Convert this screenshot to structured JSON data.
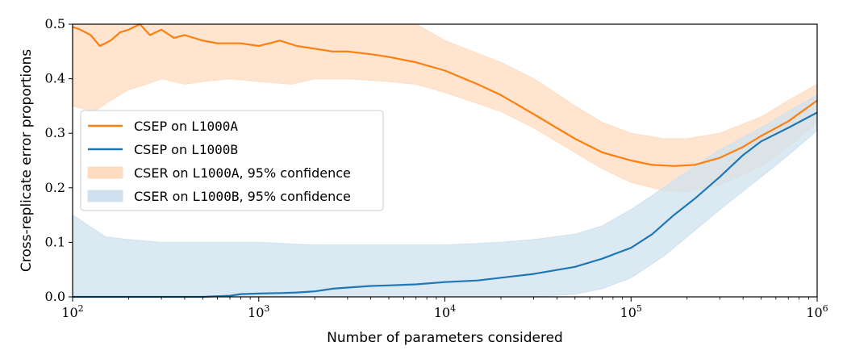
{
  "chart_data": {
    "type": "line",
    "xlabel": "Number of parameters considered",
    "ylabel": "Cross-replicate error proportions",
    "xscale": "log",
    "xlim": [
      100,
      1000000
    ],
    "ylim": [
      0,
      0.5
    ],
    "grid": false,
    "legend_position": "center-left",
    "x_ticks": [
      {
        "value": 100,
        "base": "10",
        "exp": "2"
      },
      {
        "value": 1000,
        "base": "10",
        "exp": "3"
      },
      {
        "value": 10000,
        "base": "10",
        "exp": "4"
      },
      {
        "value": 100000,
        "base": "10",
        "exp": "5"
      },
      {
        "value": 1000000,
        "base": "10",
        "exp": "6"
      }
    ],
    "y_ticks": [
      {
        "value": 0.0,
        "label": "0.0"
      },
      {
        "value": 0.1,
        "label": "0.1"
      },
      {
        "value": 0.2,
        "label": "0.2"
      },
      {
        "value": 0.3,
        "label": "0.3"
      },
      {
        "value": 0.4,
        "label": "0.4"
      },
      {
        "value": 0.5,
        "label": "0.5"
      }
    ],
    "series": [
      {
        "name": "CSEP on L1000A",
        "legend_prefix": "CSEP on ",
        "legend_mono": "L1000A",
        "legend_suffix": "",
        "kind": "line",
        "color": "#ff7f0e",
        "x": [
          100,
          110,
          125,
          140,
          160,
          180,
          200,
          230,
          260,
          300,
          350,
          400,
          500,
          600,
          800,
          1000,
          1300,
          1600,
          2000,
          2500,
          3000,
          4000,
          5000,
          7000,
          10000,
          15000,
          20000,
          30000,
          50000,
          70000,
          100000,
          130000,
          170000,
          220000,
          300000,
          400000,
          500000,
          700000,
          1000000
        ],
        "y": [
          0.495,
          0.49,
          0.48,
          0.46,
          0.47,
          0.485,
          0.49,
          0.5,
          0.48,
          0.49,
          0.475,
          0.48,
          0.47,
          0.465,
          0.465,
          0.46,
          0.47,
          0.46,
          0.455,
          0.45,
          0.45,
          0.445,
          0.44,
          0.43,
          0.415,
          0.39,
          0.37,
          0.335,
          0.29,
          0.265,
          0.25,
          0.242,
          0.24,
          0.242,
          0.255,
          0.275,
          0.295,
          0.322,
          0.36
        ]
      },
      {
        "name": "CSEP on L1000B",
        "legend_prefix": "CSEP on ",
        "legend_mono": "L1000B",
        "legend_suffix": "",
        "kind": "line",
        "color": "#1f77b4",
        "x": [
          100,
          500,
          700,
          800,
          1000,
          1300,
          1600,
          2000,
          2500,
          3000,
          4000,
          5000,
          7000,
          10000,
          15000,
          20000,
          30000,
          50000,
          70000,
          100000,
          130000,
          170000,
          220000,
          300000,
          400000,
          500000,
          700000,
          1000000
        ],
        "y": [
          0.0,
          0.0,
          0.002,
          0.005,
          0.006,
          0.007,
          0.008,
          0.01,
          0.015,
          0.017,
          0.02,
          0.021,
          0.023,
          0.027,
          0.03,
          0.035,
          0.042,
          0.055,
          0.07,
          0.09,
          0.115,
          0.15,
          0.18,
          0.22,
          0.26,
          0.285,
          0.31,
          0.338
        ]
      },
      {
        "name": "CSER on L1000A, 95% confidence",
        "legend_prefix": "CSER on ",
        "legend_mono": "L1000A",
        "legend_suffix": ", 95% confidence",
        "kind": "band",
        "color": "#ffdcc0",
        "x": [
          100,
          130,
          160,
          200,
          250,
          300,
          400,
          500,
          700,
          1000,
          1500,
          2000,
          3000,
          5000,
          7000,
          10000,
          20000,
          30000,
          50000,
          70000,
          100000,
          150000,
          200000,
          300000,
          500000,
          700000,
          1000000
        ],
        "low": [
          0.35,
          0.34,
          0.36,
          0.38,
          0.39,
          0.4,
          0.39,
          0.395,
          0.4,
          0.395,
          0.39,
          0.4,
          0.4,
          0.395,
          0.39,
          0.375,
          0.34,
          0.31,
          0.265,
          0.235,
          0.21,
          0.195,
          0.193,
          0.205,
          0.24,
          0.275,
          0.32
        ],
        "high": [
          0.5,
          0.5,
          0.5,
          0.5,
          0.5,
          0.5,
          0.5,
          0.5,
          0.5,
          0.5,
          0.5,
          0.5,
          0.5,
          0.5,
          0.5,
          0.47,
          0.43,
          0.4,
          0.35,
          0.32,
          0.3,
          0.29,
          0.29,
          0.3,
          0.33,
          0.36,
          0.39
        ]
      },
      {
        "name": "CSER on L1000B, 95% confidence",
        "legend_prefix": "CSER on ",
        "legend_mono": "L1000B",
        "legend_suffix": ", 95% confidence",
        "kind": "band",
        "color": "#cfe1ef",
        "x": [
          100,
          150,
          200,
          300,
          500,
          700,
          1000,
          2000,
          3000,
          5000,
          10000,
          20000,
          30000,
          50000,
          70000,
          100000,
          150000,
          200000,
          300000,
          500000,
          700000,
          1000000
        ],
        "low": [
          0,
          0,
          0,
          0,
          0,
          0,
          0,
          0,
          0,
          0,
          0,
          0,
          0,
          0.005,
          0.015,
          0.035,
          0.075,
          0.11,
          0.16,
          0.22,
          0.26,
          0.305
        ],
        "high": [
          0.15,
          0.11,
          0.105,
          0.1,
          0.1,
          0.1,
          0.1,
          0.095,
          0.095,
          0.095,
          0.095,
          0.1,
          0.105,
          0.115,
          0.13,
          0.16,
          0.2,
          0.23,
          0.27,
          0.31,
          0.34,
          0.37
        ]
      }
    ]
  }
}
